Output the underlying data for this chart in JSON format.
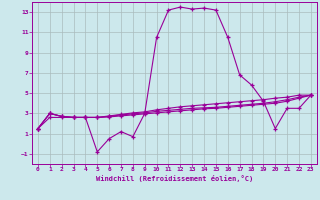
{
  "xlabel": "Windchill (Refroidissement éolien,°C)",
  "x": [
    0,
    1,
    2,
    3,
    4,
    5,
    6,
    7,
    8,
    9,
    10,
    11,
    12,
    13,
    14,
    15,
    16,
    17,
    18,
    19,
    20,
    21,
    22,
    23
  ],
  "line1": [
    1.5,
    3.0,
    2.7,
    2.6,
    2.6,
    -0.8,
    0.5,
    1.2,
    0.7,
    3.0,
    10.5,
    13.2,
    13.5,
    13.3,
    13.4,
    13.2,
    10.5,
    6.8,
    5.8,
    4.2,
    1.5,
    3.5,
    3.5,
    4.8
  ],
  "line2": [
    1.5,
    3.0,
    2.7,
    2.6,
    2.6,
    2.6,
    2.75,
    2.9,
    3.05,
    3.15,
    3.35,
    3.5,
    3.65,
    3.75,
    3.85,
    3.95,
    4.05,
    4.15,
    4.25,
    4.35,
    4.5,
    4.6,
    4.8,
    4.8
  ],
  "line3": [
    1.5,
    2.6,
    2.6,
    2.6,
    2.6,
    2.6,
    2.65,
    2.75,
    2.85,
    2.95,
    3.05,
    3.15,
    3.25,
    3.35,
    3.45,
    3.5,
    3.6,
    3.7,
    3.8,
    3.9,
    4.0,
    4.2,
    4.5,
    4.8
  ],
  "line4": [
    1.5,
    3.0,
    2.7,
    2.6,
    2.6,
    2.6,
    2.7,
    2.85,
    2.95,
    3.05,
    3.2,
    3.3,
    3.4,
    3.5,
    3.55,
    3.6,
    3.7,
    3.8,
    3.9,
    4.0,
    4.15,
    4.35,
    4.6,
    4.8
  ],
  "color": "#990099",
  "bg_color": "#cce8ec",
  "grid_color": "#aabcbe",
  "ylim": [
    -2,
    14
  ],
  "yticks": [
    -1,
    1,
    3,
    5,
    7,
    9,
    11,
    13
  ],
  "xticks": [
    0,
    1,
    2,
    3,
    4,
    5,
    6,
    7,
    8,
    9,
    10,
    11,
    12,
    13,
    14,
    15,
    16,
    17,
    18,
    19,
    20,
    21,
    22,
    23
  ]
}
